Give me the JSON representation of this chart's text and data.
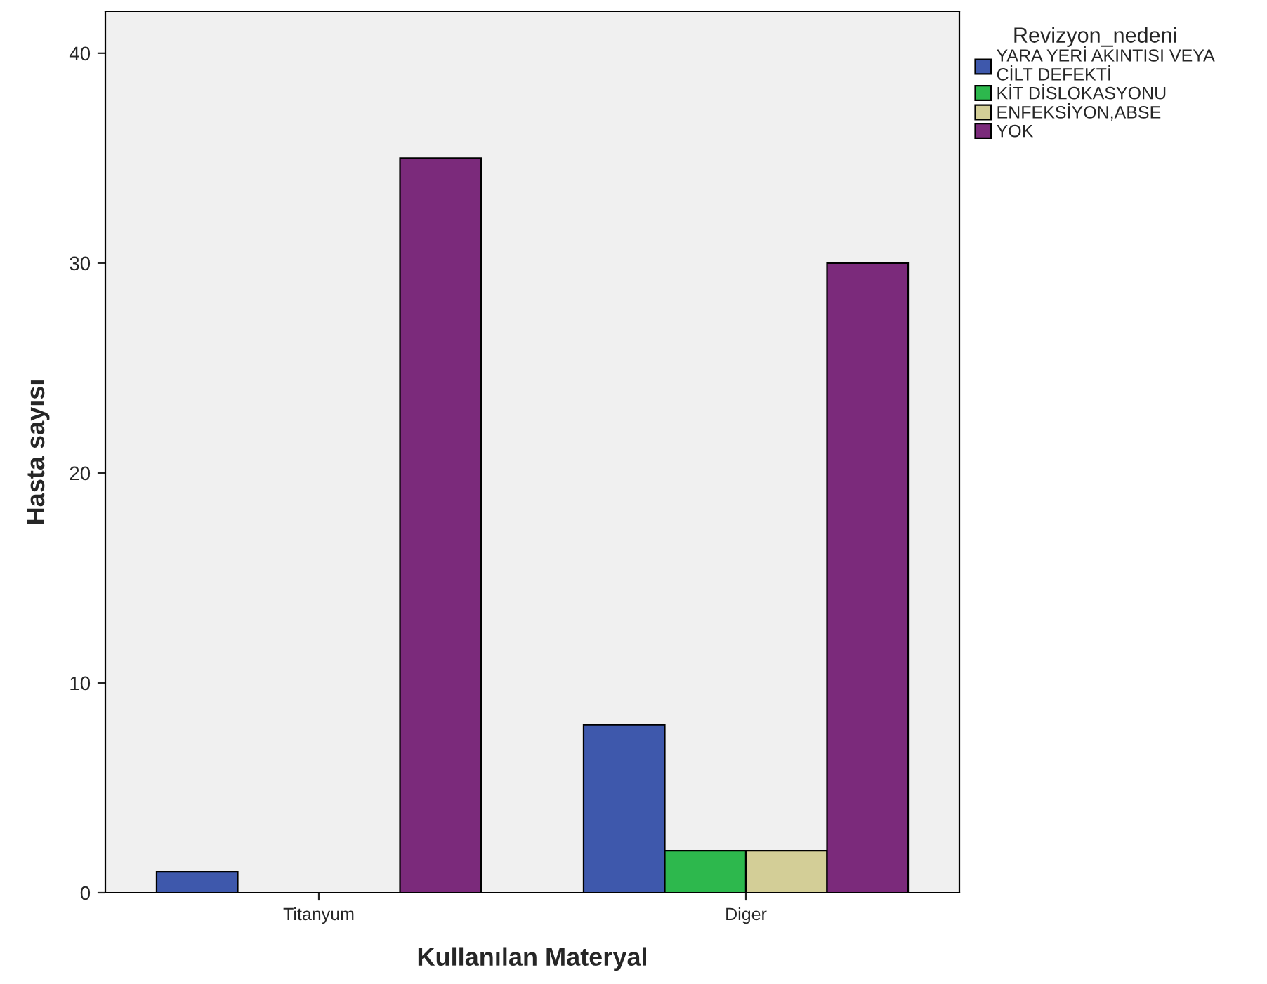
{
  "chart_data": {
    "type": "bar",
    "xlabel": "Kullanılan Materyal",
    "ylabel": "Hasta sayısı",
    "legend_title": "Revizyon_nedeni",
    "categories": [
      "Titanyum",
      "Diger"
    ],
    "series": [
      {
        "name": "YARA YERİ AKINTISI VEYA\nCİLT DEFEKTİ",
        "color": "#3e58ac",
        "values": [
          1,
          8
        ]
      },
      {
        "name": "KİT DİSLOKASYONU",
        "color": "#2db84d",
        "values": [
          0,
          2
        ]
      },
      {
        "name": "ENFEKSİYON,ABSE",
        "color": "#d3ce97",
        "values": [
          0,
          2
        ]
      },
      {
        "name": "YOK",
        "color": "#7b2a7b",
        "values": [
          35,
          30
        ]
      }
    ],
    "ylim": [
      0,
      42
    ],
    "yticks": [
      0,
      10,
      20,
      30,
      40
    ],
    "grid": false,
    "legend": "top right"
  }
}
